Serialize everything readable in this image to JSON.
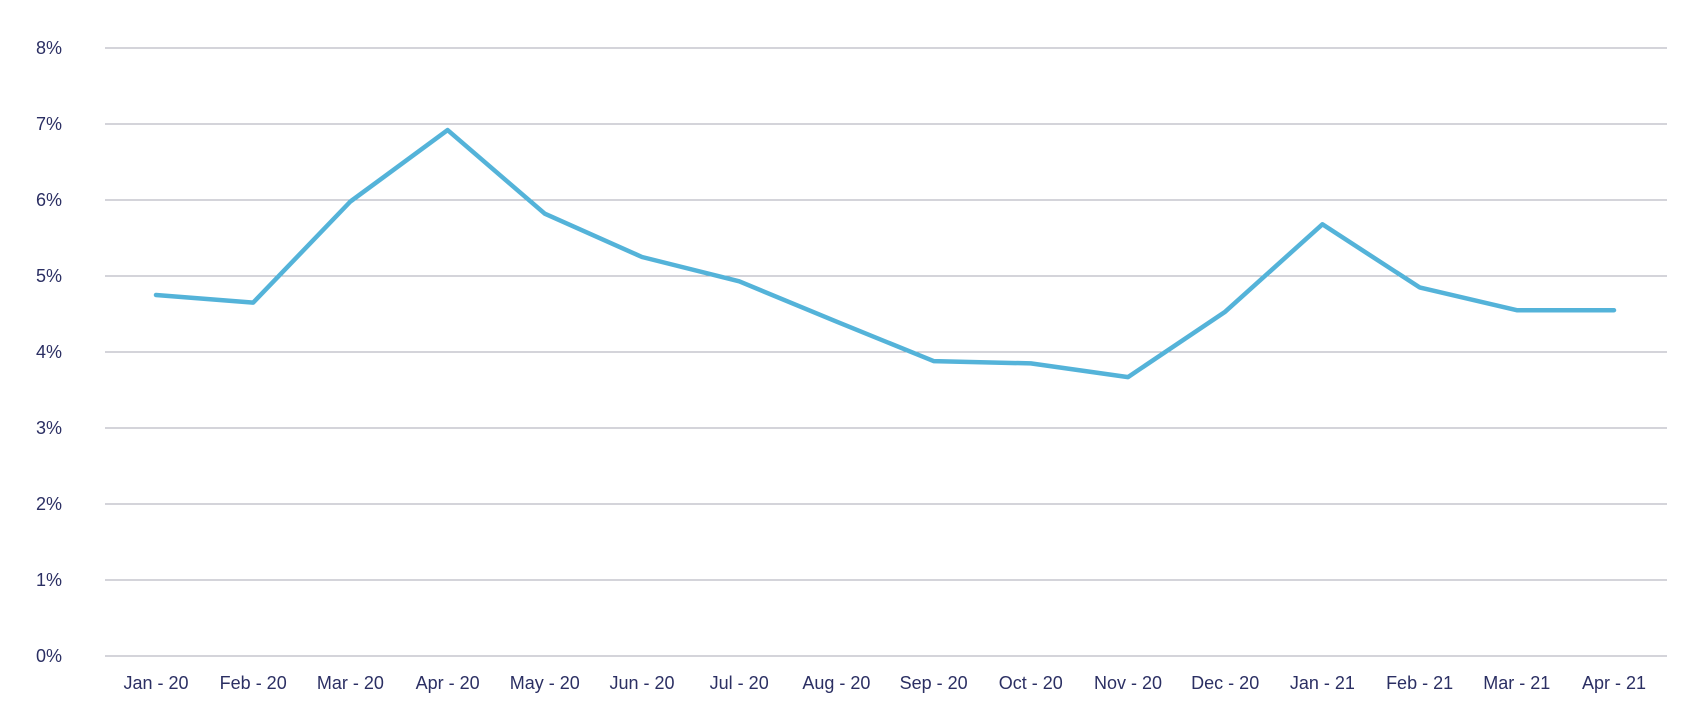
{
  "chart_data": {
    "type": "line",
    "title": "",
    "xlabel": "",
    "ylabel": "",
    "categories": [
      "Jan - 20",
      "Feb - 20",
      "Mar - 20",
      "Apr - 20",
      "May - 20",
      "Jun - 20",
      "Jul - 20",
      "Aug - 20",
      "Sep - 20",
      "Oct - 20",
      "Nov - 20",
      "Dec - 20",
      "Jan - 21",
      "Feb - 21",
      "Mar - 21",
      "Apr - 21"
    ],
    "series": [
      {
        "values": [
          4.75,
          4.65,
          5.98,
          6.92,
          5.82,
          5.25,
          4.93,
          4.4,
          3.88,
          3.85,
          3.67,
          4.53,
          5.68,
          4.85,
          4.55,
          4.55
        ],
        "color": "#54b3d9"
      }
    ],
    "ylim": [
      0,
      8
    ],
    "yticks": [
      "0%",
      "1%",
      "2%",
      "3%",
      "4%",
      "5%",
      "6%",
      "7%",
      "8%"
    ],
    "grid": true,
    "legend": "none"
  }
}
